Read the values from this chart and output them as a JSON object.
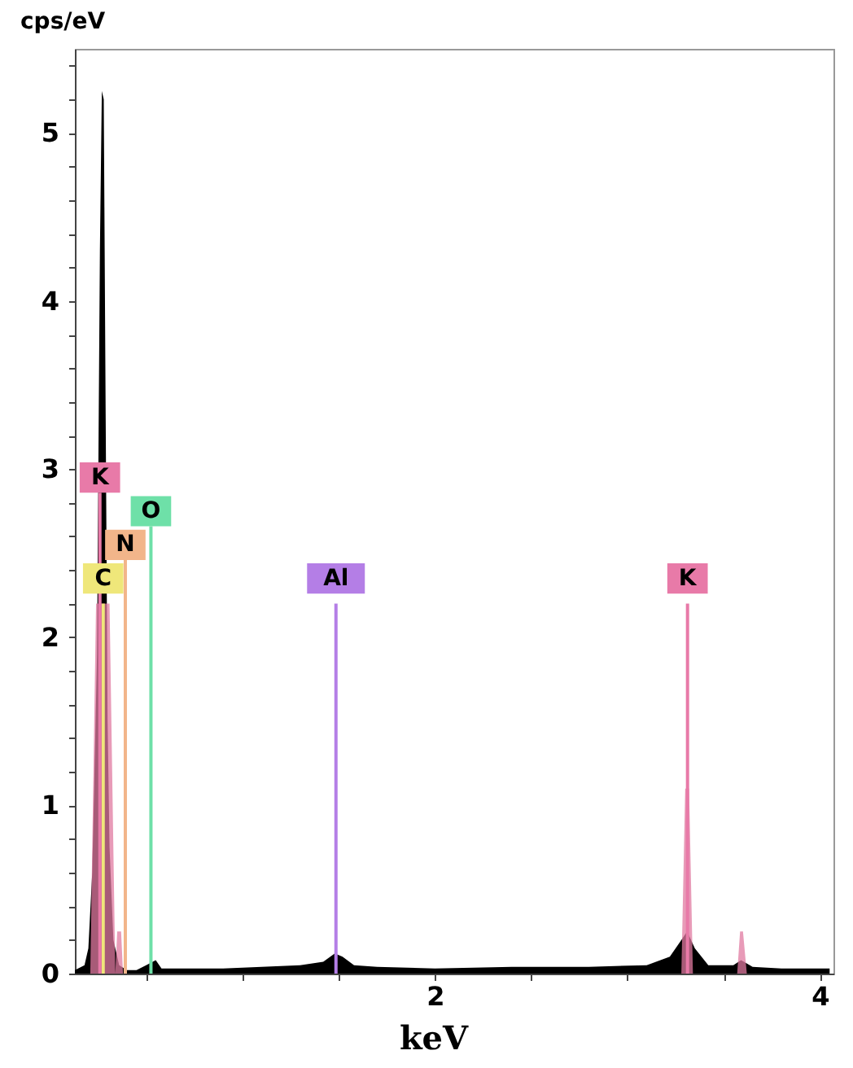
{
  "chart_data": {
    "type": "area",
    "xlabel": "keV",
    "ylabel": "cps/eV",
    "xlim": [
      0.13,
      4.07
    ],
    "ylim": [
      0,
      5.5
    ],
    "xticks": [
      {
        "value": 0.5,
        "label": null
      },
      {
        "value": 1,
        "label": null
      },
      {
        "value": 1.5,
        "label": null
      },
      2,
      {
        "value": 2.5,
        "label": null
      },
      {
        "value": 3,
        "label": null
      },
      {
        "value": 3.5,
        "label": null
      },
      4
    ],
    "yticks": [
      0,
      {
        "value": 0.2,
        "label": null
      },
      {
        "value": 0.4,
        "label": null
      },
      {
        "value": 0.6,
        "label": null
      },
      {
        "value": 0.8,
        "label": null
      },
      1,
      {
        "value": 1.2,
        "label": null
      },
      {
        "value": 1.4,
        "label": null
      },
      {
        "value": 1.6,
        "label": null
      },
      {
        "value": 1.8,
        "label": null
      },
      2,
      {
        "value": 2.2,
        "label": null
      },
      {
        "value": 2.4,
        "label": null
      },
      {
        "value": 2.6,
        "label": null
      },
      {
        "value": 2.8,
        "label": null
      },
      3,
      {
        "value": 3.2,
        "label": null
      },
      {
        "value": 3.4,
        "label": null
      },
      {
        "value": 3.6,
        "label": null
      },
      {
        "value": 3.8,
        "label": null
      },
      4,
      {
        "value": 4.2,
        "label": null
      },
      {
        "value": 4.4,
        "label": null
      },
      {
        "value": 4.6,
        "label": null
      },
      {
        "value": 4.8,
        "label": null
      },
      5,
      {
        "value": 5.2,
        "label": null
      },
      {
        "value": 5.4,
        "label": null
      }
    ],
    "grid": false,
    "series": [
      {
        "color": "#000000",
        "x": [
          0.13,
          0.18,
          0.2,
          0.22,
          0.23,
          0.245,
          0.26,
          0.27,
          0.28,
          0.29,
          0.3,
          0.31,
          0.33,
          0.36,
          0.4,
          0.45,
          0.5,
          0.55,
          0.58,
          0.7,
          0.9,
          1.1,
          1.3,
          1.42,
          1.48,
          1.52,
          1.58,
          1.7,
          2.0,
          2.4,
          2.8,
          3.1,
          3.22,
          3.28,
          3.31,
          3.35,
          3.42,
          3.55,
          3.59,
          3.65,
          3.8,
          4.05
        ],
        "values": [
          0.02,
          0.05,
          0.15,
          0.6,
          1.1,
          1.9,
          4.3,
          5.25,
          5.2,
          3.3,
          1.5,
          0.75,
          0.2,
          0.05,
          0.02,
          0.02,
          0.05,
          0.08,
          0.03,
          0.03,
          0.03,
          0.04,
          0.05,
          0.07,
          0.12,
          0.1,
          0.05,
          0.04,
          0.03,
          0.04,
          0.04,
          0.05,
          0.1,
          0.2,
          0.25,
          0.15,
          0.05,
          0.05,
          0.08,
          0.04,
          0.03,
          0.03
        ]
      },
      {
        "color": "#e07aa0",
        "x": [
          0.21,
          0.24,
          0.25,
          0.3,
          0.31,
          0.34,
          0.35,
          0.37,
          0.38,
          0.4,
          3.28,
          3.3,
          3.32,
          3.34,
          3.57,
          3.585,
          3.6,
          3.62
        ],
        "values": [
          0,
          2.2,
          2.2,
          2.2,
          2.2,
          0,
          0.25,
          0.25,
          0,
          0,
          0,
          1.1,
          1.1,
          0,
          0,
          0.25,
          0.25,
          0
        ]
      }
    ],
    "ref_lines": [
      {
        "axis": "x",
        "value": 0.277,
        "label": "C",
        "color": "#efe77a"
      },
      {
        "axis": "x",
        "value": 0.392,
        "label": "N",
        "color": "#f2b58a"
      },
      {
        "axis": "x",
        "value": 0.525,
        "label": "O",
        "color": "#6ee0a8"
      },
      {
        "axis": "x",
        "value": 0.26,
        "label": "K",
        "color": "#e87aa8"
      },
      {
        "axis": "x",
        "value": 1.486,
        "label": "Al",
        "color": "#b47ee6"
      },
      {
        "axis": "x",
        "value": 3.312,
        "label": "K",
        "color": "#e87aa8"
      }
    ]
  }
}
